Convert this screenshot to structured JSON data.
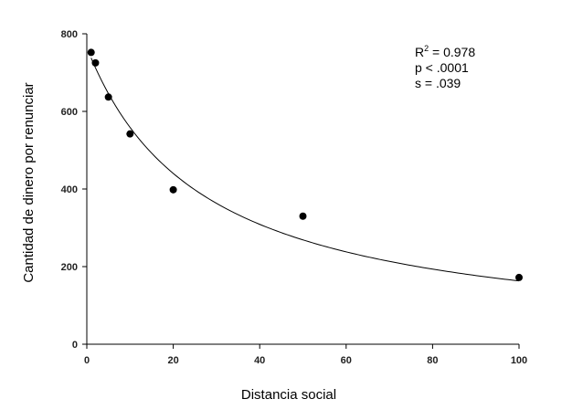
{
  "chart_data": {
    "type": "scatter",
    "xlabel": "Distancia social",
    "ylabel": "Cantidad de dinero por renunciar",
    "xlim": [
      0,
      100
    ],
    "ylim": [
      0,
      800
    ],
    "x_ticks": [
      0,
      20,
      40,
      60,
      80,
      100
    ],
    "y_ticks": [
      0,
      200,
      400,
      600,
      800
    ],
    "grid": false,
    "points": [
      {
        "x": 1,
        "y": 752
      },
      {
        "x": 2,
        "y": 725
      },
      {
        "x": 5,
        "y": 637
      },
      {
        "x": 10,
        "y": 542
      },
      {
        "x": 20,
        "y": 398
      },
      {
        "x": 50,
        "y": 330
      },
      {
        "x": 100,
        "y": 172
      }
    ],
    "fit": {
      "type": "hyperbolic",
      "a": 765,
      "k": 0.0369,
      "x_start": 1,
      "x_end": 100
    },
    "annotations": {
      "r2_base": "R",
      "r2_sup": "2",
      "r2_value": " = 0.978",
      "p_value": "p < .0001",
      "s_value": "s = .039"
    },
    "colors": {
      "points": "#000000",
      "curve": "#000000",
      "axis": "#000000"
    }
  }
}
